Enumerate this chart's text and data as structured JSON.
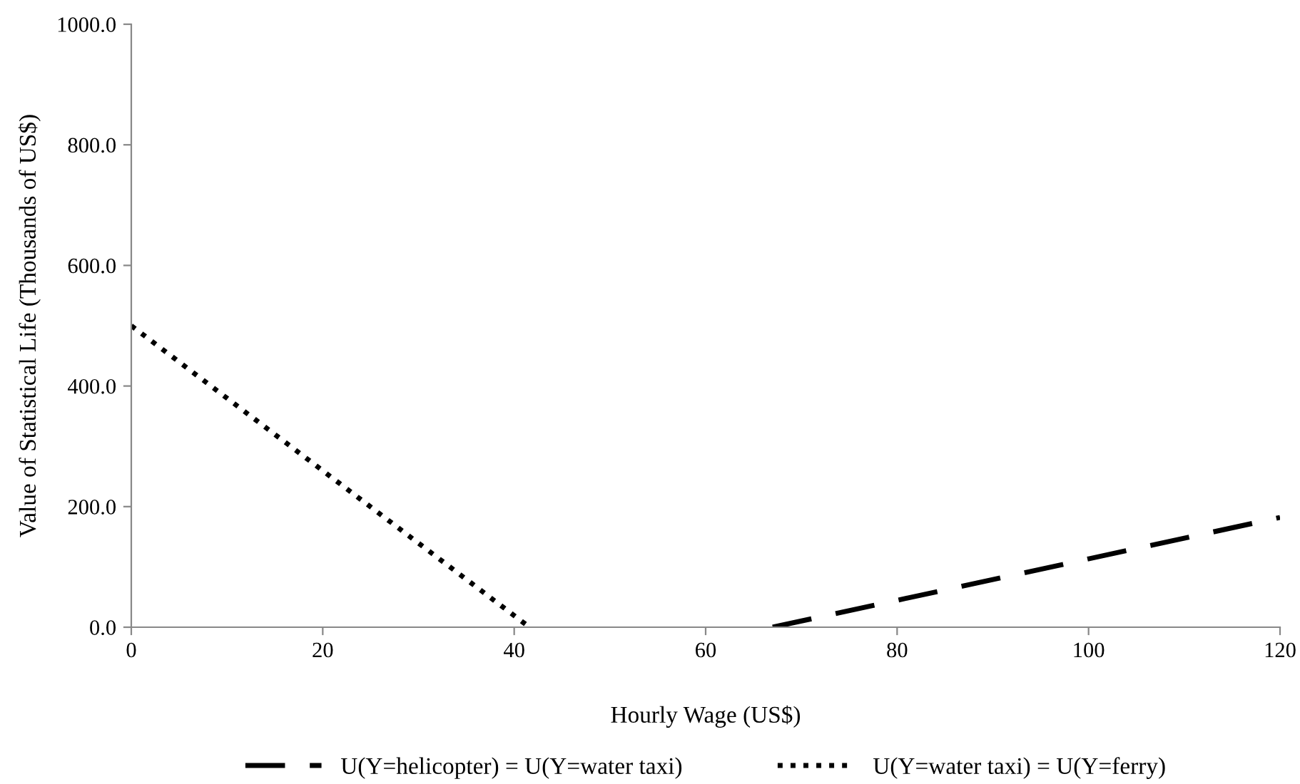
{
  "chart_data": {
    "type": "line",
    "xlabel": "Hourly Wage (US$)",
    "ylabel": "Value of Statistical Life (Thousands of US$)",
    "series": [
      {
        "name": "U(Y=helicopter) = U(Y=water taxi)",
        "color": "#000000",
        "line_style": "dashed",
        "x": [
          67,
          120
        ],
        "values": [
          0,
          182
        ]
      },
      {
        "name": "U(Y=water taxi) = U(Y=ferry)",
        "color": "#000000",
        "line_style": "dotted",
        "x": [
          0,
          41.6
        ],
        "values": [
          500,
          0
        ]
      }
    ],
    "xlim": [
      0,
      120
    ],
    "xticks": [
      0,
      20,
      40,
      60,
      80,
      100,
      120
    ],
    "ylim": [
      0,
      1000
    ],
    "yticks": [
      {
        "value": 0,
        "label": "0.0"
      },
      {
        "value": 200,
        "label": "200.0"
      },
      {
        "value": 400,
        "label": "400.0"
      },
      {
        "value": 600,
        "label": "600.0"
      },
      {
        "value": 800,
        "label": "800.0"
      },
      {
        "value": 1000,
        "label": "1000.0"
      }
    ],
    "grid": false,
    "legend": "bottom",
    "marker": "none"
  }
}
